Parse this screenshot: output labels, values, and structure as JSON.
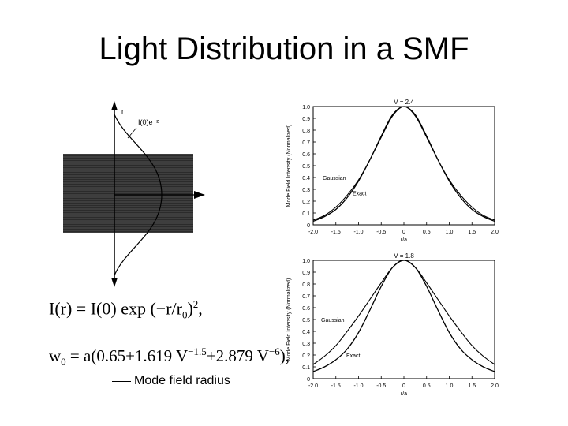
{
  "slide": {
    "title": "Light Distribution in a SMF",
    "caption": "Mode field radius"
  },
  "fiber_diagram": {
    "axis_label": "r",
    "annotation": "I(0)e⁻²"
  },
  "formulas": {
    "intensity": {
      "lhs": "I(r) = I(0) exp (−r/r",
      "sub": "0",
      "tail": ")",
      "sup": "2",
      "end": ","
    },
    "mode_radius": {
      "w": "w",
      "w_sub": "0",
      "body": " = a(0.65+1.619 V",
      "e1": "−1.5",
      "mid": "+2.879 V",
      "e2": "−6",
      "end": "),"
    }
  },
  "chart_data": [
    {
      "type": "line",
      "title": "V = 2.4",
      "xlabel": "r/a",
      "ylabel": "Mode Field Intensity (Normalized)",
      "xlim": [
        -2.0,
        2.0
      ],
      "ylim": [
        0,
        1.0
      ],
      "xticks": [
        "-2.0",
        "-1.5",
        "-1.0",
        "-0.5",
        "0",
        "0.5",
        "1.0",
        "1.5",
        "2.0"
      ],
      "yticks": [
        "0",
        "0.1",
        "0.2",
        "0.3",
        "0.4",
        "0.5",
        "0.6",
        "0.7",
        "0.8",
        "0.9",
        "1.0"
      ],
      "x": [
        -2.0,
        -1.75,
        -1.5,
        -1.25,
        -1.0,
        -0.75,
        -0.5,
        -0.25,
        0,
        0.25,
        0.5,
        0.75,
        1.0,
        1.25,
        1.5,
        1.75,
        2.0
      ],
      "series": [
        {
          "name": "Gaussian",
          "values": [
            0.04,
            0.08,
            0.15,
            0.25,
            0.38,
            0.55,
            0.74,
            0.92,
            1.0,
            0.92,
            0.74,
            0.55,
            0.38,
            0.25,
            0.15,
            0.08,
            0.04
          ]
        },
        {
          "name": "Exact",
          "values": [
            0.03,
            0.07,
            0.13,
            0.23,
            0.37,
            0.55,
            0.75,
            0.93,
            1.0,
            0.93,
            0.75,
            0.55,
            0.37,
            0.23,
            0.13,
            0.07,
            0.03
          ]
        }
      ],
      "labels": {
        "gaussian": "Gaussian",
        "exact": "Exact"
      }
    },
    {
      "type": "line",
      "title": "V = 1.8",
      "xlabel": "r/a",
      "ylabel": "Mode Field Intensity (Normalized)",
      "xlim": [
        -2.0,
        2.0
      ],
      "ylim": [
        0,
        1.0
      ],
      "xticks": [
        "-2.0",
        "-1.5",
        "-1.0",
        "-0.5",
        "0",
        "0.5",
        "1.0",
        "1.5",
        "2.0"
      ],
      "yticks": [
        "0",
        "0.1",
        "0.2",
        "0.3",
        "0.4",
        "0.5",
        "0.6",
        "0.7",
        "0.8",
        "0.9",
        "1.0"
      ],
      "x": [
        -2.0,
        -1.75,
        -1.5,
        -1.25,
        -1.0,
        -0.75,
        -0.5,
        -0.25,
        0,
        0.25,
        0.5,
        0.75,
        1.0,
        1.25,
        1.5,
        1.75,
        2.0
      ],
      "series": [
        {
          "name": "Gaussian",
          "values": [
            0.12,
            0.19,
            0.28,
            0.4,
            0.53,
            0.67,
            0.81,
            0.94,
            1.0,
            0.94,
            0.81,
            0.67,
            0.53,
            0.4,
            0.28,
            0.19,
            0.12
          ]
        },
        {
          "name": "Exact",
          "values": [
            0.06,
            0.1,
            0.16,
            0.25,
            0.39,
            0.58,
            0.78,
            0.94,
            1.0,
            0.94,
            0.78,
            0.58,
            0.39,
            0.25,
            0.16,
            0.1,
            0.06
          ]
        }
      ],
      "labels": {
        "gaussian": "Gaussian",
        "exact": "Exact"
      }
    }
  ]
}
